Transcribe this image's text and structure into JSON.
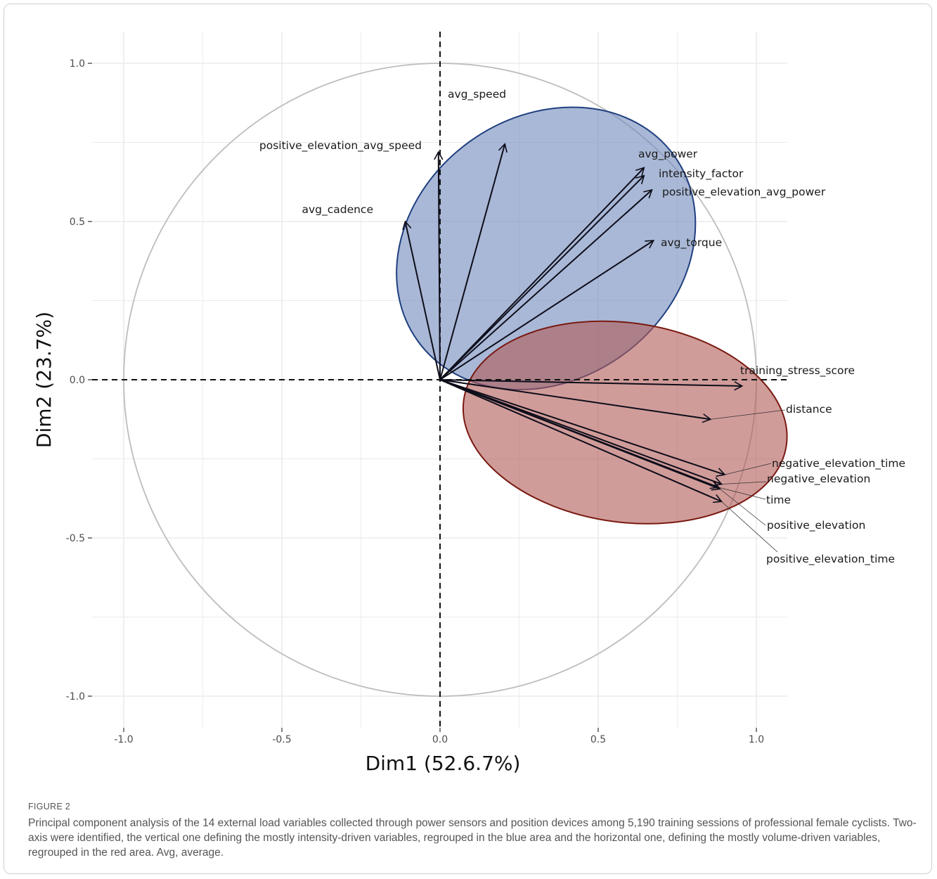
{
  "caption": {
    "label": "FIGURE 2",
    "text": "Principal component analysis of the 14 external load variables collected through power sensors and position devices among 5,190 training sessions of professional female cyclists. Two-axis were identified, the vertical one defining the mostly intensity-driven variables, regrouped in the blue area and the horizontal one, defining the mostly volume-driven variables, regrouped in the red area. Avg, average."
  },
  "colors": {
    "blue_fill": "#6f89bb",
    "blue_edge": "#1f3f7f",
    "red_fill": "#b05a55",
    "red_edge": "#7a1a12",
    "arrow": "#0d0d1a",
    "circle": "#bdbdbd",
    "grid": "#ebebeb"
  },
  "chart_data": {
    "type": "scatter",
    "subtype": "pca-variable-correlation-circle",
    "title": "",
    "xlabel": "Dim1 (52.6.7%)",
    "ylabel": "Dim2 (23.7%)",
    "xlim": [
      -1.1,
      1.1
    ],
    "ylim": [
      -1.1,
      1.1
    ],
    "xticks": [
      -1.0,
      -0.5,
      0.0,
      0.5,
      1.0
    ],
    "yticks": [
      -1.0,
      -0.5,
      0.0,
      0.5,
      1.0
    ],
    "xtick_labels": [
      "-1.0",
      "-0.5",
      "0.0",
      "0.5",
      "1.0"
    ],
    "ytick_labels": [
      "-1.0",
      "-0.5",
      "0.0",
      "0.5",
      "1.0"
    ],
    "grid": true,
    "reference_lines": [
      "x=0",
      "y=0"
    ],
    "unit_circle": true,
    "groups": [
      {
        "color": "blue",
        "ellipse": {
          "cx": 0.335,
          "cy": 0.415,
          "rx": 0.5,
          "ry": 0.415,
          "rotation_deg": 36
        },
        "variables": [
          {
            "name": "avg_speed",
            "x": 0.205,
            "y": 0.745
          },
          {
            "name": "positive_elevation_avg_speed",
            "x": -0.005,
            "y": 0.72
          },
          {
            "name": "avg_cadence",
            "x": -0.11,
            "y": 0.5
          },
          {
            "name": "avg_power",
            "x": 0.645,
            "y": 0.67
          },
          {
            "name": "intensity_factor",
            "x": 0.645,
            "y": 0.645
          },
          {
            "name": "positive_elevation_avg_power",
            "x": 0.67,
            "y": 0.6
          },
          {
            "name": "avg_torque",
            "x": 0.675,
            "y": 0.44
          }
        ]
      },
      {
        "color": "red",
        "ellipse": {
          "cx": 0.585,
          "cy": -0.135,
          "rx": 0.515,
          "ry": 0.315,
          "rotation_deg": -8
        },
        "variables": [
          {
            "name": "training_stress_score",
            "x": 0.955,
            "y": -0.02
          },
          {
            "name": "distance",
            "x": 0.855,
            "y": -0.125
          },
          {
            "name": "negative_elevation_time",
            "x": 0.9,
            "y": -0.3
          },
          {
            "name": "negative_elevation",
            "x": 0.89,
            "y": -0.33
          },
          {
            "name": "time",
            "x": 0.88,
            "y": -0.34
          },
          {
            "name": "positive_elevation",
            "x": 0.885,
            "y": -0.345
          },
          {
            "name": "positive_elevation_time",
            "x": 0.89,
            "y": -0.385
          }
        ]
      }
    ]
  }
}
